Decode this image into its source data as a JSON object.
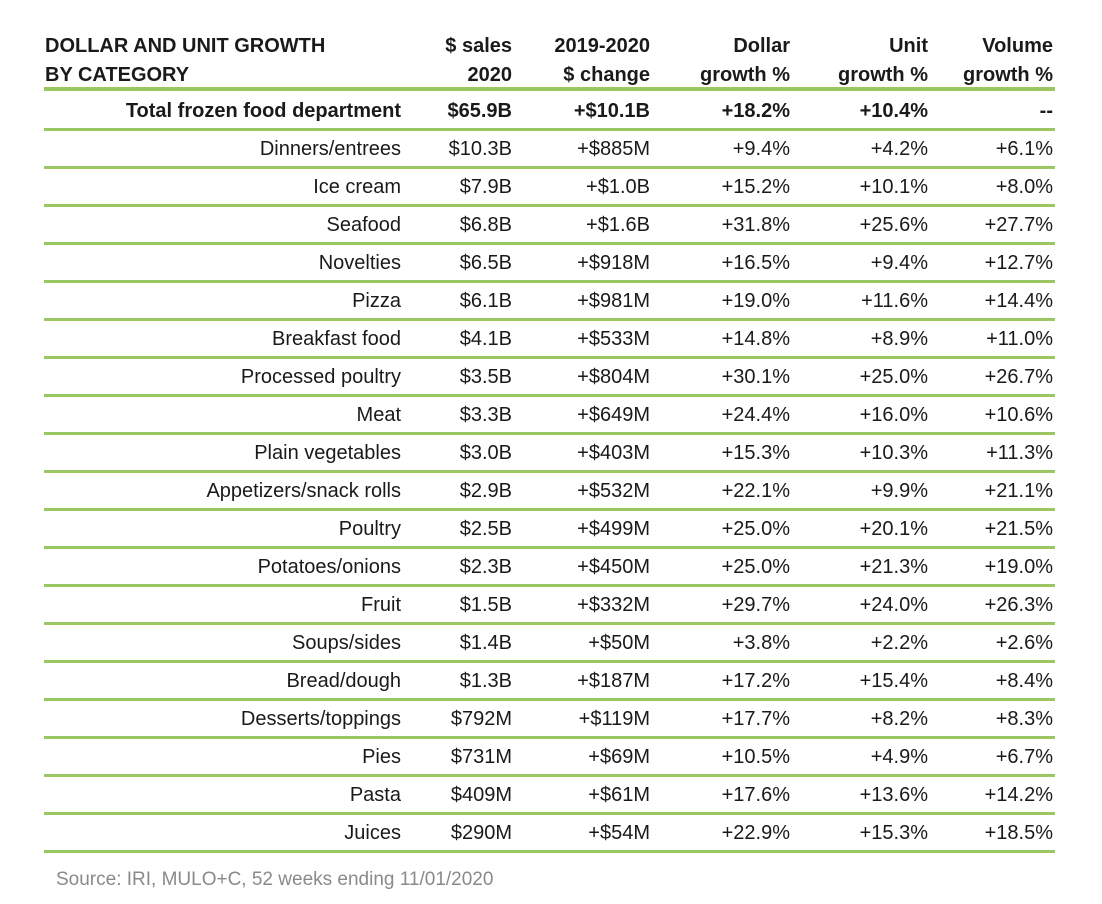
{
  "chart_data": {
    "type": "table",
    "header": {
      "title_line1": "DOLLAR AND UNIT GROWTH",
      "title_line2": "BY CATEGORY",
      "columns": [
        {
          "line1": "$ sales",
          "line2": "2020"
        },
        {
          "line1": "2019-2020",
          "line2": "$ change"
        },
        {
          "line1": "Dollar",
          "line2": "growth %"
        },
        {
          "line1": "Unit",
          "line2": "growth %"
        },
        {
          "line1": "Volume",
          "line2": "growth %"
        }
      ]
    },
    "rows": [
      {
        "category": "Total frozen food department",
        "sales_2020": "$65.9B",
        "dollar_change": "+$10.1B",
        "dollar_growth": "+18.2%",
        "unit_growth": "+10.4%",
        "volume_growth": "--",
        "bold": true
      },
      {
        "category": "Dinners/entrees",
        "sales_2020": "$10.3B",
        "dollar_change": "+$885M",
        "dollar_growth": "+9.4%",
        "unit_growth": "+4.2%",
        "volume_growth": "+6.1%"
      },
      {
        "category": "Ice cream",
        "sales_2020": "$7.9B",
        "dollar_change": "+$1.0B",
        "dollar_growth": "+15.2%",
        "unit_growth": "+10.1%",
        "volume_growth": "+8.0%"
      },
      {
        "category": "Seafood",
        "sales_2020": "$6.8B",
        "dollar_change": "+$1.6B",
        "dollar_growth": "+31.8%",
        "unit_growth": "+25.6%",
        "volume_growth": "+27.7%"
      },
      {
        "category": "Novelties",
        "sales_2020": "$6.5B",
        "dollar_change": "+$918M",
        "dollar_growth": "+16.5%",
        "unit_growth": "+9.4%",
        "volume_growth": "+12.7%"
      },
      {
        "category": "Pizza",
        "sales_2020": "$6.1B",
        "dollar_change": "+$981M",
        "dollar_growth": "+19.0%",
        "unit_growth": "+11.6%",
        "volume_growth": "+14.4%"
      },
      {
        "category": "Breakfast food",
        "sales_2020": "$4.1B",
        "dollar_change": "+$533M",
        "dollar_growth": "+14.8%",
        "unit_growth": "+8.9%",
        "volume_growth": "+11.0%"
      },
      {
        "category": "Processed poultry",
        "sales_2020": "$3.5B",
        "dollar_change": "+$804M",
        "dollar_growth": "+30.1%",
        "unit_growth": "+25.0%",
        "volume_growth": "+26.7%"
      },
      {
        "category": "Meat",
        "sales_2020": "$3.3B",
        "dollar_change": "+$649M",
        "dollar_growth": "+24.4%",
        "unit_growth": "+16.0%",
        "volume_growth": "+10.6%"
      },
      {
        "category": "Plain vegetables",
        "sales_2020": "$3.0B",
        "dollar_change": "+$403M",
        "dollar_growth": "+15.3%",
        "unit_growth": "+10.3%",
        "volume_growth": "+11.3%"
      },
      {
        "category": "Appetizers/snack rolls",
        "sales_2020": "$2.9B",
        "dollar_change": "+$532M",
        "dollar_growth": "+22.1%",
        "unit_growth": "+9.9%",
        "volume_growth": "+21.1%"
      },
      {
        "category": "Poultry",
        "sales_2020": "$2.5B",
        "dollar_change": "+$499M",
        "dollar_growth": "+25.0%",
        "unit_growth": "+20.1%",
        "volume_growth": "+21.5%"
      },
      {
        "category": "Potatoes/onions",
        "sales_2020": "$2.3B",
        "dollar_change": "+$450M",
        "dollar_growth": "+25.0%",
        "unit_growth": "+21.3%",
        "volume_growth": "+19.0%"
      },
      {
        "category": "Fruit",
        "sales_2020": "$1.5B",
        "dollar_change": "+$332M",
        "dollar_growth": "+29.7%",
        "unit_growth": "+24.0%",
        "volume_growth": "+26.3%"
      },
      {
        "category": "Soups/sides",
        "sales_2020": "$1.4B",
        "dollar_change": "+$50M",
        "dollar_growth": "+3.8%",
        "unit_growth": "+2.2%",
        "volume_growth": "+2.6%"
      },
      {
        "category": "Bread/dough",
        "sales_2020": "$1.3B",
        "dollar_change": "+$187M",
        "dollar_growth": "+17.2%",
        "unit_growth": "+15.4%",
        "volume_growth": "+8.4%"
      },
      {
        "category": "Desserts/toppings",
        "sales_2020": "$792M",
        "dollar_change": "+$119M",
        "dollar_growth": "+17.7%",
        "unit_growth": "+8.2%",
        "volume_growth": "+8.3%"
      },
      {
        "category": "Pies",
        "sales_2020": "$731M",
        "dollar_change": "+$69M",
        "dollar_growth": "+10.5%",
        "unit_growth": "+4.9%",
        "volume_growth": "+6.7%"
      },
      {
        "category": "Pasta",
        "sales_2020": "$409M",
        "dollar_change": "+$61M",
        "dollar_growth": "+17.6%",
        "unit_growth": "+13.6%",
        "volume_growth": "+14.2%"
      },
      {
        "category": "Juices",
        "sales_2020": "$290M",
        "dollar_change": "+$54M",
        "dollar_growth": "+22.9%",
        "unit_growth": "+15.3%",
        "volume_growth": "+18.5%"
      }
    ],
    "source": "Source: IRI, MULO+C, 52 weeks ending 11/01/2020",
    "rule_color": "#9bc763"
  }
}
